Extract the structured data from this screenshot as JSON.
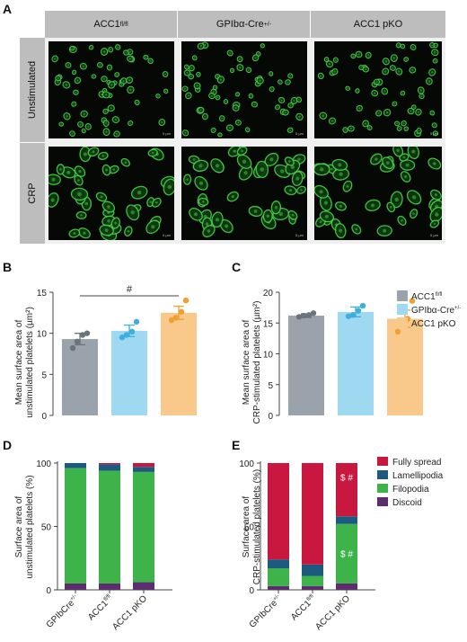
{
  "panel_a": {
    "letter": "A",
    "columns": [
      "ACC1",
      "GPIbα-Cre",
      "ACC1 pKO"
    ],
    "column_sups": [
      "fl/fl",
      "+/-",
      ""
    ],
    "rows": [
      "Unstimulated",
      "CRP"
    ],
    "scale_text": "5 µm"
  },
  "panel_b": {
    "letter": "B",
    "ylabel": [
      "Mean surface area of",
      "unstimulated platelets (µm²)"
    ],
    "sig": "#"
  },
  "panel_c": {
    "letter": "C",
    "ylabel": [
      "Mean surface area of",
      "CRP-stimulated platelets (µm²)"
    ]
  },
  "panel_d": {
    "letter": "D",
    "ylabel": [
      "Surface area of",
      "unstimulated platelets (%)"
    ]
  },
  "panel_e": {
    "letter": "E",
    "ylabel": [
      "Surface area of",
      "CRP-stimulated platelets (%)"
    ]
  },
  "legend_bc": [
    {
      "label": "ACC1",
      "sup": "fl/fl",
      "color": "#9aa3ab"
    },
    {
      "label": "GPIbα-Cre",
      "sup": "+/-",
      "color": "#9ed8f1"
    },
    {
      "label": "ACC1 pKO",
      "sup": "",
      "color": "#f8c98a"
    }
  ],
  "legend_de": [
    {
      "label": "Fully spread",
      "color": "#c8183f"
    },
    {
      "label": "Lamellipodia",
      "color": "#1c5a7f"
    },
    {
      "label": "Filopodia",
      "color": "#3db34a"
    },
    {
      "label": "Discoid",
      "color": "#5e2d6f"
    }
  ],
  "chart_data": [
    {
      "panel": "B",
      "type": "bar",
      "categories": [
        "ACC1 fl/fl",
        "GPIbα-Cre+/-",
        "ACC1 pKO"
      ],
      "values": [
        9.3,
        10.3,
        12.5
      ],
      "errors": [
        0.7,
        0.7,
        0.8
      ],
      "points": [
        [
          8.2,
          9.0,
          9.8,
          10.0
        ],
        [
          9.5,
          9.8,
          10.2,
          11.4
        ],
        [
          11.6,
          11.9,
          12.6,
          14.0
        ]
      ],
      "colors": [
        "#9aa3ab",
        "#9ed8f1",
        "#f8c98a"
      ],
      "point_colors": [
        "#6b747c",
        "#3eaee0",
        "#f0a030"
      ],
      "ylim": [
        0,
        15
      ],
      "yticks": [
        0,
        5,
        10,
        15
      ],
      "annotation": "#"
    },
    {
      "panel": "C",
      "type": "bar",
      "categories": [
        "ACC1 fl/fl",
        "GPIbα-Cre+/-",
        "ACC1 pKO"
      ],
      "values": [
        16.2,
        16.8,
        15.7
      ],
      "errors": [
        0.3,
        0.8,
        1.4
      ],
      "points": [
        [
          16.0,
          16.2,
          16.3,
          16.6
        ],
        [
          16.1,
          16.3,
          17.0,
          17.8
        ],
        [
          13.6,
          15.0,
          15.7,
          18.6
        ]
      ],
      "colors": [
        "#9aa3ab",
        "#9ed8f1",
        "#f8c98a"
      ],
      "point_colors": [
        "#6b747c",
        "#3eaee0",
        "#f0a030"
      ],
      "ylim": [
        0,
        20
      ],
      "yticks": [
        0,
        5,
        10,
        15,
        20
      ]
    },
    {
      "panel": "D",
      "type": "stacked-bar",
      "categories": [
        "GPIbCre",
        "ACC1",
        "ACC1 pKO"
      ],
      "category_sups": [
        "+/-",
        "fl/fl",
        ""
      ],
      "series": [
        {
          "name": "Discoid",
          "values": [
            5,
            5,
            6
          ],
          "color": "#5e2d6f"
        },
        {
          "name": "Filopodia",
          "values": [
            91,
            89,
            87
          ],
          "color": "#3db34a"
        },
        {
          "name": "Lamellipodia",
          "values": [
            4,
            5,
            4
          ],
          "color": "#1c5a7f"
        },
        {
          "name": "Fully spread",
          "values": [
            0,
            1,
            3
          ],
          "color": "#c8183f"
        }
      ],
      "ylim": [
        0,
        100
      ],
      "yticks": [
        0,
        50,
        100
      ]
    },
    {
      "panel": "E",
      "type": "stacked-bar",
      "categories": [
        "GPIbCre",
        "ACC1",
        "ACC1 pKO"
      ],
      "category_sups": [
        "+/-",
        "fl/fl",
        ""
      ],
      "series": [
        {
          "name": "Discoid",
          "values": [
            3,
            3,
            5
          ],
          "color": "#5e2d6f"
        },
        {
          "name": "Filopodia",
          "values": [
            14,
            8,
            47
          ],
          "color": "#3db34a"
        },
        {
          "name": "Lamellipodia",
          "values": [
            7,
            9,
            6
          ],
          "color": "#1c5a7f"
        },
        {
          "name": "Fully spread",
          "values": [
            76,
            80,
            42
          ],
          "color": "#c8183f"
        }
      ],
      "annotations": [
        "$ #",
        "$ #"
      ],
      "ylim": [
        0,
        100
      ],
      "yticks": [
        0,
        50,
        100
      ]
    }
  ]
}
